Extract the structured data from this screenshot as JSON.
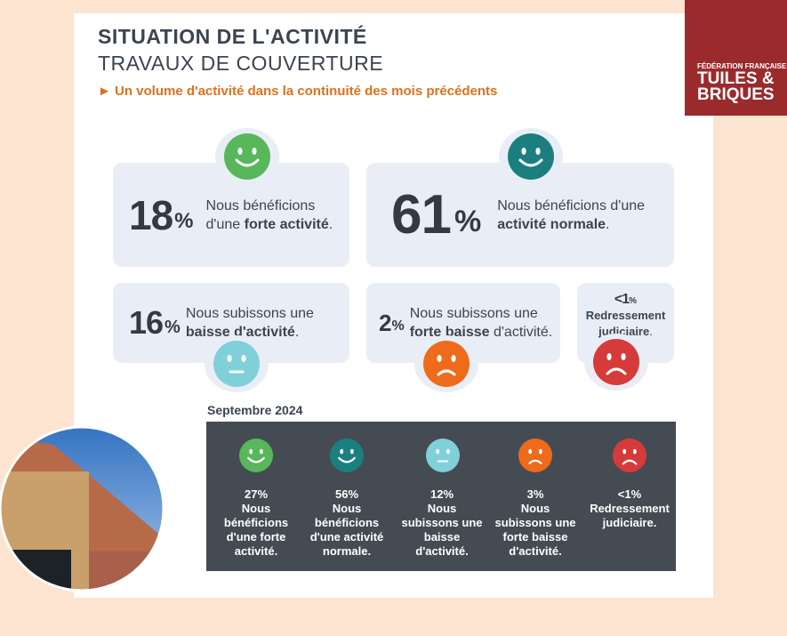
{
  "header": {
    "title": "SITUATION DE L'ACTIVITÉ",
    "subtitle": "TRAVAUX DE COUVERTURE",
    "tagline": "Un volume d'activité dans la continuité des mois précédents"
  },
  "logo": {
    "line1": "FÉDÉRATION FRANÇAISE",
    "line2": "TUILES &",
    "line3": "BRIQUES"
  },
  "cards": [
    {
      "value": "18",
      "unit": "%",
      "before": "Nous bénéficions d'une ",
      "bold": "forte activité",
      "after": "."
    },
    {
      "value": "61",
      "unit": "%",
      "before": "Nous bénéficions d'une ",
      "bold": "activité normale",
      "after": "."
    },
    {
      "value": "16",
      "unit": "%",
      "before": "Nous subissons une ",
      "bold": "baisse d'activité",
      "after": "."
    },
    {
      "value": "2",
      "unit": "%",
      "before": "Nous subissons une ",
      "bold": "forte baisse",
      "after": " d'activité."
    },
    {
      "value": "<1",
      "unit": "%",
      "bold": "Redressement judiciaire",
      "after": "."
    }
  ],
  "previous": {
    "label": "Septembre 2024",
    "items": [
      {
        "value": "27%",
        "text": "Nous bénéficions d'une forte activité."
      },
      {
        "value": "56%",
        "text": "Nous bénéficions d'une activité normale."
      },
      {
        "value": "12%",
        "text": "Nous subissons une baisse d'activité."
      },
      {
        "value": "3%",
        "text": "Nous subissons une forte baisse d'activité."
      },
      {
        "value": "<1%",
        "text": "Redressement judiciaire."
      }
    ]
  }
}
